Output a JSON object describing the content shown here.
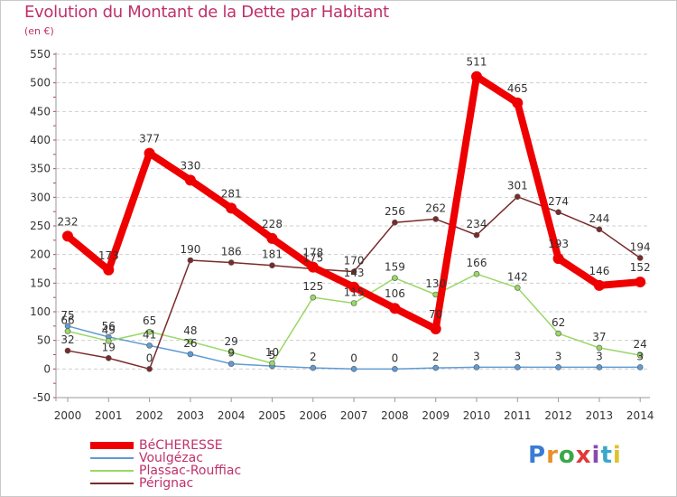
{
  "header": {
    "title": "Evolution du Montant de la Dette par Habitant",
    "subtitle": "(en €)"
  },
  "logo": {
    "text": "Proxiti",
    "letter_colors": [
      "#3a7bd5",
      "#e8902a",
      "#3aa84a",
      "#e03a3a",
      "#8a4ab0",
      "#3aa8c8",
      "#e0c030"
    ]
  },
  "chart_data": {
    "type": "line",
    "title": "Evolution du Montant de la Dette par Habitant",
    "subtitle": "(en €)",
    "xlabel": "",
    "ylabel": "",
    "ylim": [
      -50,
      550
    ],
    "yticks": [
      -50,
      0,
      50,
      100,
      150,
      200,
      250,
      300,
      350,
      400,
      450,
      500,
      550
    ],
    "grid": "horizontal dashed",
    "legend_position": "bottom-left",
    "x": [
      "2000",
      "2001",
      "2002",
      "2003",
      "2004",
      "2005",
      "2006",
      "2007",
      "2008",
      "2009",
      "2010",
      "2011",
      "2012",
      "2013",
      "2014"
    ],
    "series": [
      {
        "name": "BéCHERESSE",
        "color": "#ee0000",
        "values": [
          232,
          173,
          377,
          330,
          281,
          228,
          178,
          143,
          106,
          70,
          511,
          465,
          193,
          146,
          152
        ],
        "labels": [
          "232",
          "173",
          "377",
          "330",
          "281",
          "228",
          "178",
          "143",
          "106",
          "70",
          "511",
          "465",
          "193",
          "146",
          "152"
        ]
      },
      {
        "name": "Voulgézac",
        "color": "#5f9bd5",
        "values": [
          75,
          56,
          41,
          26,
          9,
          5,
          2,
          0,
          0,
          2,
          3,
          3,
          3,
          3,
          3
        ],
        "labels": [
          "75",
          "56",
          "41",
          "26",
          "9",
          "5",
          "2",
          "0",
          "0",
          "2",
          "3",
          "3",
          "3",
          "3",
          "3"
        ]
      },
      {
        "name": "Plassac-Rouffiac",
        "color": "#99d866",
        "values": [
          66,
          49,
          65,
          48,
          29,
          10,
          125,
          115,
          159,
          130,
          166,
          142,
          62,
          37,
          24
        ],
        "labels": [
          "66",
          "49",
          "65",
          "48",
          "29",
          "10",
          "125",
          "115",
          "159",
          "130",
          "166",
          "142",
          "62",
          "37",
          "24"
        ]
      },
      {
        "name": "Pérignac",
        "color": "#7a2a2a",
        "values": [
          32,
          19,
          0,
          190,
          186,
          181,
          175,
          170,
          256,
          262,
          234,
          301,
          274,
          244,
          194
        ],
        "labels": [
          "32",
          "19",
          "0",
          "190",
          "186",
          "181",
          "175",
          "170",
          "256",
          "262",
          "234",
          "301",
          "274",
          "244",
          "194"
        ]
      }
    ]
  }
}
